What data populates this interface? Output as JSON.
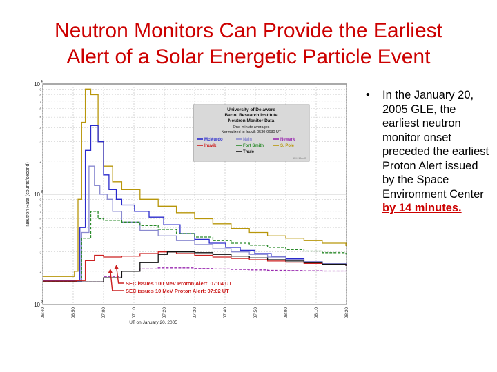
{
  "slide": {
    "title_line1": "Neutron Monitors Can Provide the Earliest",
    "title_line2": "Alert of a Solar Energetic Particle Event",
    "bullet_marker": "•",
    "bullet_text": "In the January 20, 2005 GLE, the earliest neutron monitor onset preceded the earliest Proton Alert issued by the Space Environment Center",
    "bullet_highlight": "by 14 minutes.",
    "accent_color": "#cc0000"
  },
  "chart_data": {
    "type": "line",
    "title": "",
    "xlabel": "UT on January 20, 2005",
    "ylabel": "Neutron Rate (counts/second)",
    "ylim": [
      100,
      10000
    ],
    "y_scale": "log",
    "y_ticks": [
      {
        "value": 100,
        "base": "10",
        "exp": "2"
      },
      {
        "value": 1000,
        "base": "10",
        "exp": "3"
      },
      {
        "value": 10000,
        "base": "10",
        "exp": "4"
      }
    ],
    "y_minor_labels": [
      "2",
      "3",
      "4",
      "5",
      "6",
      "7",
      "8",
      "9"
    ],
    "x_ticks": [
      "06:40",
      "06:50",
      "07:00",
      "07:10",
      "07:20",
      "07:30",
      "07:40",
      "07:50",
      "08:00",
      "08:10",
      "08:20"
    ],
    "grid": true,
    "legend": {
      "title_lines": [
        "University of Delaware",
        "Bartol Research Institute",
        "Neutron Monitor Data"
      ],
      "subtitle_lines": [
        "One-minute averages",
        "Normalized to Inuvik 0530-0630 UT"
      ],
      "code": "BRI 21Jan05",
      "entries": [
        {
          "name": "McMurdo",
          "color": "#2a2acc"
        },
        {
          "name": "Nain",
          "color": "#8a8ad0"
        },
        {
          "name": "Newark",
          "color": "#9a2ab0"
        },
        {
          "name": "Inuvik",
          "color": "#cc2020"
        },
        {
          "name": "Fort Smith",
          "color": "#2a8a2a"
        },
        {
          "name": "S. Pole",
          "color": "#b8960a"
        },
        {
          "name": "Thule",
          "color": "#111111"
        }
      ]
    },
    "annotations": [
      {
        "text": "SEC issues 100 MeV Proton Alert: 07:04 UT",
        "x": "07:04",
        "color": "#cc2020"
      },
      {
        "text": "SEC issues 10 MeV Proton Alert: 07:02 UT",
        "x": "07:02",
        "color": "#cc2020"
      }
    ],
    "series": [
      {
        "name": "S. Pole",
        "color": "#b8960a",
        "dashed": false,
        "points": [
          [
            6.67,
            180
          ],
          [
            6.8,
            180
          ],
          [
            6.84,
            200
          ],
          [
            6.86,
            900
          ],
          [
            6.88,
            4500
          ],
          [
            6.9,
            9000
          ],
          [
            6.93,
            8000
          ],
          [
            6.97,
            3000
          ],
          [
            7.0,
            1800
          ],
          [
            7.05,
            1300
          ],
          [
            7.1,
            1100
          ],
          [
            7.2,
            900
          ],
          [
            7.3,
            780
          ],
          [
            7.4,
            680
          ],
          [
            7.5,
            600
          ],
          [
            7.6,
            540
          ],
          [
            7.7,
            490
          ],
          [
            7.8,
            450
          ],
          [
            7.9,
            420
          ],
          [
            8.0,
            400
          ],
          [
            8.1,
            380
          ],
          [
            8.2,
            360
          ],
          [
            8.33,
            340
          ]
        ]
      },
      {
        "name": "McMurdo",
        "color": "#2a2acc",
        "dashed": false,
        "points": [
          [
            6.67,
            165
          ],
          [
            6.83,
            165
          ],
          [
            6.87,
            500
          ],
          [
            6.9,
            2500
          ],
          [
            6.93,
            4200
          ],
          [
            6.97,
            3000
          ],
          [
            7.0,
            1500
          ],
          [
            7.03,
            1100
          ],
          [
            7.07,
            900
          ],
          [
            7.1,
            800
          ],
          [
            7.17,
            700
          ],
          [
            7.25,
            620
          ],
          [
            7.33,
            530
          ],
          [
            7.42,
            440
          ],
          [
            7.5,
            390
          ],
          [
            7.58,
            360
          ],
          [
            7.67,
            330
          ],
          [
            7.75,
            310
          ],
          [
            7.83,
            290
          ],
          [
            7.92,
            275
          ],
          [
            8.0,
            260
          ],
          [
            8.1,
            245
          ],
          [
            8.2,
            235
          ],
          [
            8.33,
            225
          ]
        ]
      },
      {
        "name": "Nain",
        "color": "#8a8ad0",
        "dashed": false,
        "points": [
          [
            6.67,
            160
          ],
          [
            6.84,
            162
          ],
          [
            6.88,
            450
          ],
          [
            6.92,
            1800
          ],
          [
            6.95,
            1200
          ],
          [
            6.98,
            1000
          ],
          [
            7.02,
            900
          ],
          [
            7.05,
            700
          ],
          [
            7.1,
            560
          ],
          [
            7.2,
            470
          ],
          [
            7.3,
            420
          ],
          [
            7.4,
            380
          ],
          [
            7.5,
            350
          ],
          [
            7.6,
            320
          ],
          [
            7.7,
            300
          ],
          [
            7.8,
            285
          ],
          [
            7.9,
            270
          ],
          [
            8.0,
            255
          ],
          [
            8.1,
            245
          ],
          [
            8.2,
            235
          ],
          [
            8.33,
            225
          ]
        ]
      },
      {
        "name": "Newark",
        "color": "#9a2ab0",
        "dashed": true,
        "points": [
          [
            6.67,
            160
          ],
          [
            6.95,
            160
          ],
          [
            7.0,
            180
          ],
          [
            7.1,
            200
          ],
          [
            7.2,
            210
          ],
          [
            7.3,
            215
          ],
          [
            7.4,
            215
          ],
          [
            7.5,
            212
          ],
          [
            7.6,
            210
          ],
          [
            7.7,
            208
          ],
          [
            7.8,
            206
          ],
          [
            7.9,
            204
          ],
          [
            8.0,
            203
          ],
          [
            8.1,
            202
          ],
          [
            8.2,
            201
          ],
          [
            8.33,
            200
          ]
        ]
      },
      {
        "name": "Fort Smith",
        "color": "#2a8a2a",
        "dashed": true,
        "points": [
          [
            6.67,
            162
          ],
          [
            6.84,
            165
          ],
          [
            6.88,
            400
          ],
          [
            6.93,
            700
          ],
          [
            6.97,
            600
          ],
          [
            7.0,
            580
          ],
          [
            7.1,
            560
          ],
          [
            7.2,
            520
          ],
          [
            7.3,
            480
          ],
          [
            7.4,
            440
          ],
          [
            7.5,
            410
          ],
          [
            7.6,
            380
          ],
          [
            7.7,
            360
          ],
          [
            7.8,
            345
          ],
          [
            7.9,
            330
          ],
          [
            8.0,
            315
          ],
          [
            8.1,
            305
          ],
          [
            8.2,
            295
          ],
          [
            8.33,
            285
          ]
        ]
      },
      {
        "name": "Inuvik",
        "color": "#cc2020",
        "dashed": false,
        "points": [
          [
            6.67,
            163
          ],
          [
            6.85,
            165
          ],
          [
            6.9,
            250
          ],
          [
            6.95,
            280
          ],
          [
            7.0,
            270
          ],
          [
            7.1,
            275
          ],
          [
            7.2,
            290
          ],
          [
            7.3,
            300
          ],
          [
            7.4,
            290
          ],
          [
            7.5,
            280
          ],
          [
            7.6,
            270
          ],
          [
            7.7,
            262
          ],
          [
            7.8,
            255
          ],
          [
            7.9,
            248
          ],
          [
            8.0,
            242
          ],
          [
            8.1,
            236
          ],
          [
            8.2,
            230
          ],
          [
            8.33,
            225
          ]
        ]
      },
      {
        "name": "Thule",
        "color": "#111111",
        "dashed": false,
        "points": [
          [
            6.67,
            160
          ],
          [
            6.9,
            160
          ],
          [
            7.0,
            175
          ],
          [
            7.1,
            200
          ],
          [
            7.2,
            240
          ],
          [
            7.3,
            285
          ],
          [
            7.35,
            300
          ],
          [
            7.4,
            300
          ],
          [
            7.5,
            295
          ],
          [
            7.6,
            285
          ],
          [
            7.7,
            275
          ],
          [
            7.8,
            265
          ],
          [
            7.9,
            255
          ],
          [
            8.0,
            248
          ],
          [
            8.1,
            240
          ],
          [
            8.2,
            232
          ],
          [
            8.33,
            225
          ]
        ]
      }
    ]
  }
}
